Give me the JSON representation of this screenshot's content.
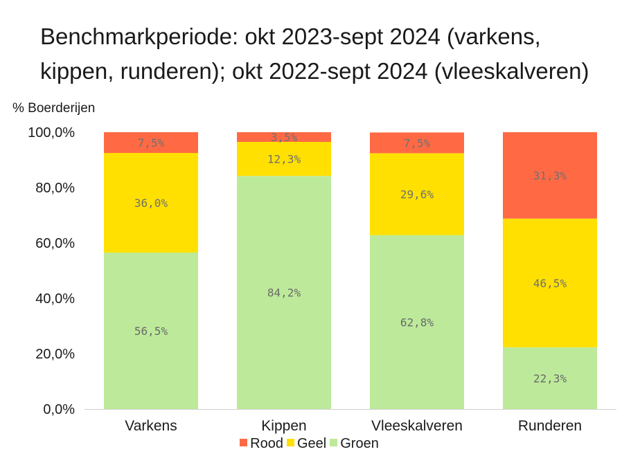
{
  "title_lines": [
    "Benchmarkperiode: okt 2023-sept 2024 (varkens,",
    "kippen, runderen); okt 2022-sept 2024 (vleeskalveren)"
  ],
  "chart_data": {
    "type": "bar",
    "stacked": true,
    "ylabel": "% Boerderijen",
    "xlabel": "",
    "ylim": [
      0,
      100
    ],
    "yticks": [
      "0,0%",
      "20,0%",
      "40,0%",
      "60,0%",
      "80,0%",
      "100,0%"
    ],
    "ytick_values": [
      0,
      20,
      40,
      60,
      80,
      100
    ],
    "categories": [
      "Varkens",
      "Kippen",
      "Vleeskalveren",
      "Runderen"
    ],
    "series": [
      {
        "name": "Groen",
        "color": "#BDEA9A",
        "values": [
          56.5,
          84.2,
          62.8,
          22.3
        ],
        "labels": [
          "56,5%",
          "84,2%",
          "62,8%",
          "22,3%"
        ]
      },
      {
        "name": "Geel",
        "color": "#FFE000",
        "values": [
          36.0,
          12.3,
          29.6,
          46.5
        ],
        "labels": [
          "36,0%",
          "12,3%",
          "29,6%",
          "46,5%"
        ]
      },
      {
        "name": "Rood",
        "color": "#FF6A45",
        "values": [
          7.5,
          3.5,
          7.5,
          31.3
        ],
        "labels": [
          "7,5%",
          "3,5%",
          "7,5%",
          "31,3%"
        ]
      }
    ],
    "legend": {
      "position": "bottom",
      "order": [
        "Rood",
        "Geel",
        "Groen"
      ]
    },
    "grid": false
  }
}
